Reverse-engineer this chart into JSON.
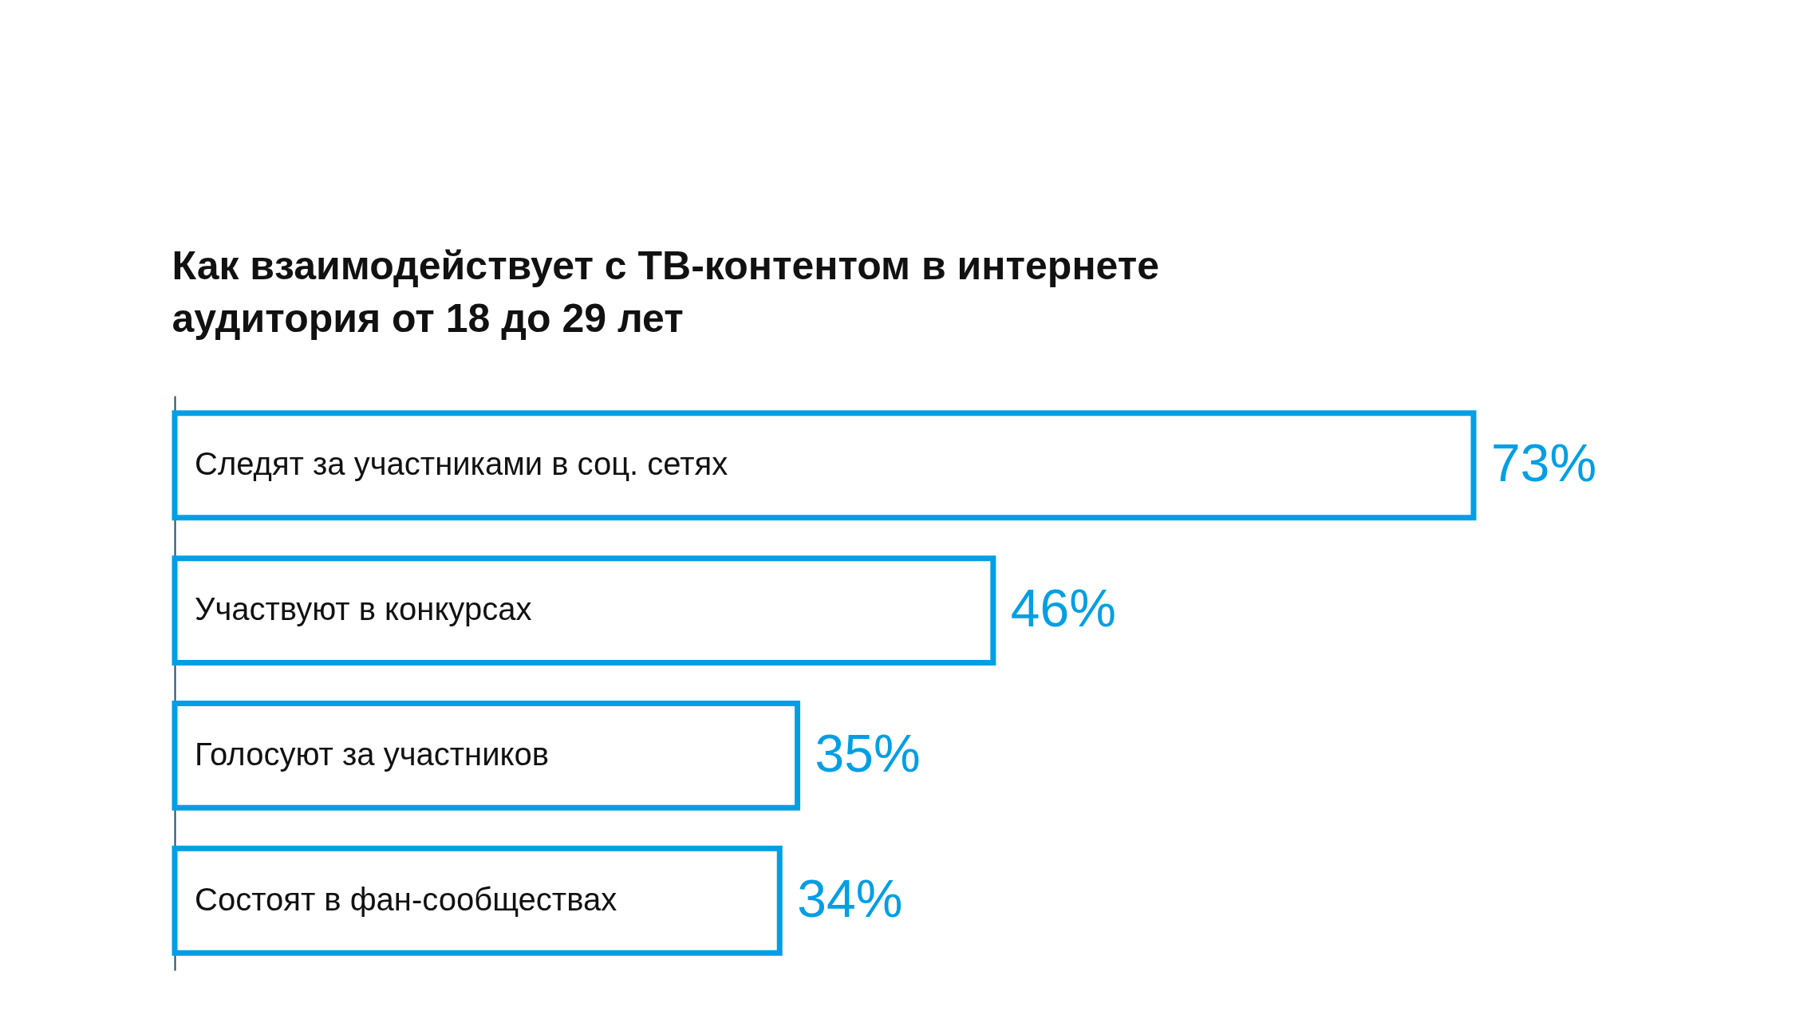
{
  "chart_data": {
    "type": "bar",
    "orientation": "horizontal",
    "title": "Как взаимодействует с ТВ-контентом в интернете аудитория от 18 до 29 лет",
    "categories": [
      "Следят за участниками в соц. сетях",
      "Участвуют в конкурсах",
      "Голосуют за участников",
      "Состоят в фан-сообществах"
    ],
    "values": [
      73,
      46,
      35,
      34
    ],
    "value_labels": [
      "73%",
      "46%",
      "35%",
      "34%"
    ],
    "color": "#009fe3"
  }
}
